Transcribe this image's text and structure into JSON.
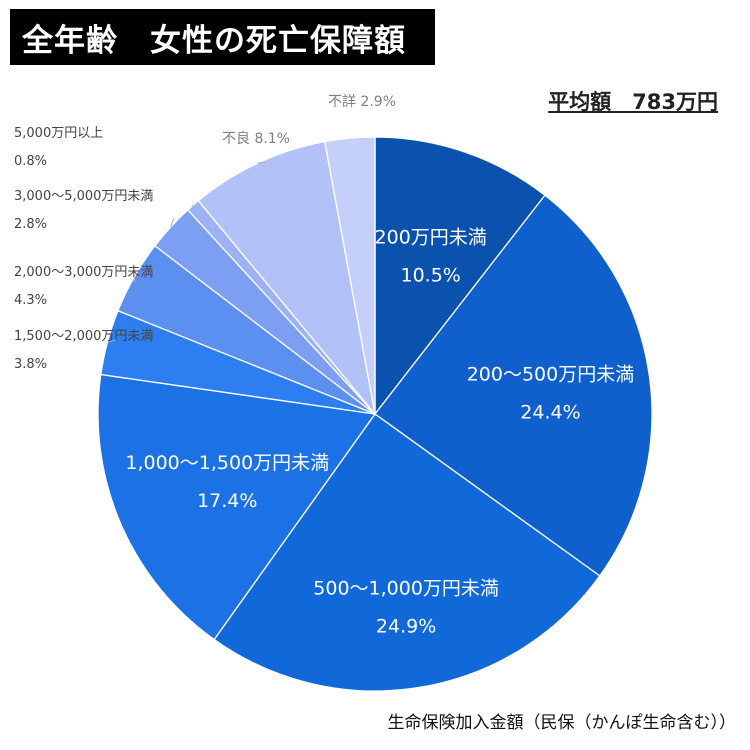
{
  "title": "全年齢　女性の死亡保障額",
  "average_label": "平均額　783万円",
  "footer_label": "生命保険加入金額（民保（かんぽ生命含む））",
  "chart_data": {
    "type": "pie",
    "unit": "%",
    "slices": [
      {
        "label": "200万円未満",
        "value": 10.5,
        "color": "#0a52ae",
        "label_style": "inside"
      },
      {
        "label": "200～500万円未満",
        "value": 24.4,
        "color": "#0f5fcc",
        "label_style": "inside"
      },
      {
        "label": "500～1,000万円未満",
        "value": 24.9,
        "color": "#1169d9",
        "label_style": "inside"
      },
      {
        "label": "1,000～1,500万円未満",
        "value": 17.4,
        "color": "#1c72e4",
        "label_style": "inside"
      },
      {
        "label": "1,500～2,000万円未満",
        "value": 3.8,
        "color": "#2d7ef0",
        "label_style": "outside"
      },
      {
        "label": "2,000～3,000万円未満",
        "value": 4.3,
        "color": "#5b8ff0",
        "label_style": "outside"
      },
      {
        "label": "3,000～5,000万円未満",
        "value": 2.8,
        "color": "#7c9ff3",
        "label_style": "outside"
      },
      {
        "label": "5,000万円以上",
        "value": 0.8,
        "color": "#9db1f6",
        "label_style": "outside"
      },
      {
        "label": "不良",
        "value": 8.1,
        "color": "#b2c1f8",
        "label_style": "outside"
      },
      {
        "label": "不詳",
        "value": 2.9,
        "color": "#c4d0fa",
        "label_style": "outside"
      }
    ]
  }
}
